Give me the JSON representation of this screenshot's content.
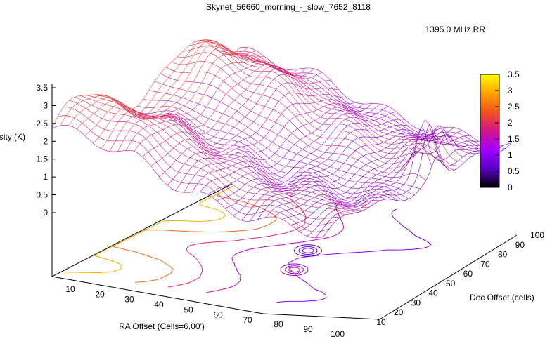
{
  "chart_data": {
    "type": "surface",
    "title": "Skynet_56660_morning_-_slow_7652_8118",
    "legend": {
      "label": "1395.0 MHz RR",
      "position": "top-right"
    },
    "xlabel": "RA Offset (Cells=6.00')",
    "ylabel": "Dec Offset (cells)",
    "zlabel": "Intensity (K)",
    "xlim": [
      0,
      100
    ],
    "ylim": [
      0,
      100
    ],
    "zlim": [
      0,
      3.5
    ],
    "x_ticks": [
      "10",
      "20",
      "30",
      "40",
      "50",
      "60",
      "70",
      "80",
      "90",
      "100"
    ],
    "y_ticks": [
      "10",
      "20",
      "30",
      "40",
      "50",
      "60",
      "70",
      "80",
      "90",
      "100"
    ],
    "z_ticks": [
      "0",
      "0.5",
      "1",
      "1.5",
      "2",
      "2.5",
      "3",
      "3.5"
    ],
    "colorbar": {
      "range": [
        0,
        3.5
      ],
      "ticks": [
        "0",
        "0.5",
        "1",
        "1.5",
        "2",
        "2.5",
        "3",
        "3.5"
      ],
      "colors": [
        "#000000",
        "#5a00c8",
        "#a000ff",
        "#d2148c",
        "#f0501e",
        "#ffa000",
        "#ffff00"
      ]
    },
    "grid": true,
    "surface_profile_x": [
      0,
      10,
      20,
      30,
      40,
      50,
      60,
      70,
      80,
      90,
      100
    ],
    "surface_profile_z": [
      3.2,
      3.1,
      2.9,
      2.6,
      2.1,
      1.7,
      1.4,
      1.2,
      1.05,
      1.0,
      0.9
    ],
    "peaks": [
      {
        "x": 95,
        "y": 60,
        "z": 2.3
      },
      {
        "x": 88,
        "y": 78,
        "z": 1.7
      }
    ],
    "contour_levels": [
      0.5,
      1,
      1.5,
      2,
      2.5,
      3
    ]
  }
}
